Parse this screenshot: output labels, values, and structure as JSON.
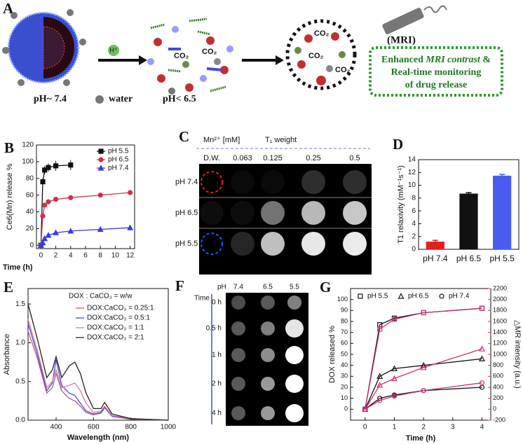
{
  "panel_a": {
    "label": "A",
    "proton": "H⁺",
    "co2": "CO₂",
    "mri": "(MRI)",
    "box_text": [
      "Enhanced",
      "MRI contrast",
      "&",
      "Real-time monitoring",
      "of drug release"
    ],
    "ph_start": "pH~ 7.4",
    "water": "water",
    "ph_end": "pH< 6.5"
  },
  "panel_c": {
    "label": "C",
    "unit": "Mn²⁺ [mM]",
    "mode": "T₁ weight",
    "columns": [
      "D.W.",
      "0.063",
      "0.125",
      "0.25",
      "0.5"
    ],
    "rows": [
      "pH 7.4",
      "pH 6.5",
      "pH 5.5"
    ]
  },
  "panel_f": {
    "label": "F",
    "col_title": "pH",
    "columns": [
      "7.4",
      "6.5",
      "5.5"
    ],
    "row_title": "Time",
    "rows": [
      "0 h",
      "0.5 h",
      "1 h",
      "2 h",
      "4 h"
    ]
  },
  "chart_data": [
    {
      "label": "B",
      "type": "line",
      "xlabel": "Time (h)",
      "ylabel": "Ce6(Mn)  release %",
      "xlim": [
        -0.6,
        12.6
      ],
      "xticks": [
        0,
        2,
        4,
        6,
        8,
        10,
        12
      ],
      "ylim": [
        -4,
        120
      ],
      "yticks": [
        0,
        20,
        40,
        60,
        80,
        100,
        120
      ],
      "marker_fill": "filled",
      "series": [
        {
          "name": "pH 5.5",
          "color": "#111111",
          "marker": "square",
          "x": [
            0,
            0.25,
            0.5,
            1,
            2,
            4
          ],
          "values": [
            0,
            76,
            90,
            93,
            95,
            96
          ],
          "errors": [
            0,
            4,
            5,
            5,
            6,
            6
          ]
        },
        {
          "name": "pH 6.5",
          "color": "#d0304a",
          "marker": "circle",
          "x": [
            0,
            0.25,
            0.5,
            1,
            2,
            4,
            8,
            12
          ],
          "values": [
            0,
            35,
            48,
            52,
            55,
            57,
            60,
            63
          ]
        },
        {
          "name": "pH 7.4",
          "color": "#3a3ae0",
          "marker": "triangle",
          "x": [
            0,
            0.25,
            0.5,
            1,
            2,
            4,
            8,
            12
          ],
          "values": [
            0,
            3,
            8,
            12,
            15,
            17,
            19,
            21
          ]
        }
      ]
    },
    {
      "label": "D",
      "type": "bar",
      "ylabel": "T1 relaxivity (mM⁻¹s⁻¹)",
      "categories": [
        "pH 7.4",
        "pH 6.5",
        "pH 5.5"
      ],
      "values": [
        1.2,
        8.7,
        11.5
      ],
      "errors": [
        0.2,
        0.15,
        0.2
      ],
      "colors": [
        "#e02020",
        "#111111",
        "#4a5cf0"
      ],
      "ylim": [
        0,
        14
      ],
      "yticks": [
        0,
        2,
        4,
        6,
        8,
        10,
        12,
        14
      ]
    },
    {
      "label": "E",
      "type": "line",
      "xlabel": "Wavelength (nm)",
      "ylabel": "Absorbance",
      "legend_title": "DOX : CaCO₃ = w/w",
      "x": [
        250,
        300,
        350,
        380,
        400,
        430,
        470,
        500,
        530,
        560,
        600,
        640,
        660,
        700,
        800,
        1000
      ],
      "xlim": [
        250,
        1000
      ],
      "xticks": [
        400,
        600,
        800,
        1000
      ],
      "ylim": [
        0,
        1.7
      ],
      "yticks": [
        {
          "value": 0,
          "label": "0.0"
        },
        0.5,
        {
          "value": 1,
          "label": "1.0"
        },
        1.5
      ],
      "series": [
        {
          "name": "DOX:CaCO₃ = 0.25:1",
          "color": "#b0608a",
          "values": [
            1.15,
            0.8,
            0.35,
            0.42,
            0.6,
            0.38,
            0.28,
            0.25,
            0.18,
            0.1,
            0.07,
            0.09,
            0.16,
            0.05,
            0.01,
            0
          ]
        },
        {
          "name": "DOX:CaCO₃ = 0.5:1",
          "color": "#5050c8",
          "values": [
            1.25,
            0.85,
            0.38,
            0.48,
            0.78,
            0.45,
            0.35,
            0.32,
            0.22,
            0.12,
            0.08,
            0.1,
            0.17,
            0.05,
            0.02,
            0
          ]
        },
        {
          "name": "DOX:CaCO₃ = 1:1",
          "color": "#e070a8",
          "values": [
            1.3,
            0.9,
            0.42,
            0.5,
            0.65,
            0.42,
            0.45,
            0.48,
            0.38,
            0.22,
            0.1,
            0.12,
            0.18,
            0.06,
            0.02,
            0
          ]
        },
        {
          "name": "DOX:CaCO₃ = 2:1",
          "color": "#222222",
          "values": [
            1.5,
            1.05,
            0.55,
            0.65,
            0.82,
            0.55,
            0.7,
            0.75,
            0.6,
            0.35,
            0.15,
            0.15,
            0.23,
            0.08,
            0.02,
            0
          ]
        }
      ]
    },
    {
      "label": "G",
      "type": "line",
      "xlabel": "Time (h)",
      "ylabel": "DOX released %",
      "y2label": "△MR intensity (a.u.)",
      "x": [
        0,
        0.5,
        1,
        2,
        4
      ],
      "xlim": [
        -0.5,
        4.3
      ],
      "xticks": [
        0,
        1,
        2,
        3,
        4
      ],
      "ylim": [
        -10,
        110
      ],
      "yticks": [
        0,
        10,
        20,
        30,
        40,
        50,
        60,
        70,
        80,
        90,
        100
      ],
      "y2lim": [
        -200,
        2200
      ],
      "y2ticks": [
        -200,
        0,
        200,
        400,
        600,
        800,
        1000,
        1200,
        1400,
        1600,
        1800,
        2000,
        2200
      ],
      "marker_fill": "hollow",
      "series": [
        {
          "name": "pH 5.5",
          "color": "#111111",
          "marker": "square",
          "values": [
            0,
            77,
            83,
            88,
            92
          ],
          "y2_color": "#c8307a",
          "y2_values": [
            0,
            1460,
            1640,
            1760,
            1840
          ]
        },
        {
          "name": "pH 6.5",
          "color": "#111111",
          "marker": "triangle",
          "values": [
            0,
            30,
            37,
            40,
            46
          ],
          "y2_color": "#c8307a",
          "y2_values": [
            0,
            440,
            560,
            760,
            1100
          ]
        },
        {
          "name": "pH 7.4",
          "color": "#111111",
          "marker": "circle",
          "values": [
            0,
            10,
            13,
            17,
            20
          ],
          "y2_color": "#c8307a",
          "y2_values": [
            0,
            160,
            240,
            340,
            480
          ]
        }
      ]
    }
  ]
}
